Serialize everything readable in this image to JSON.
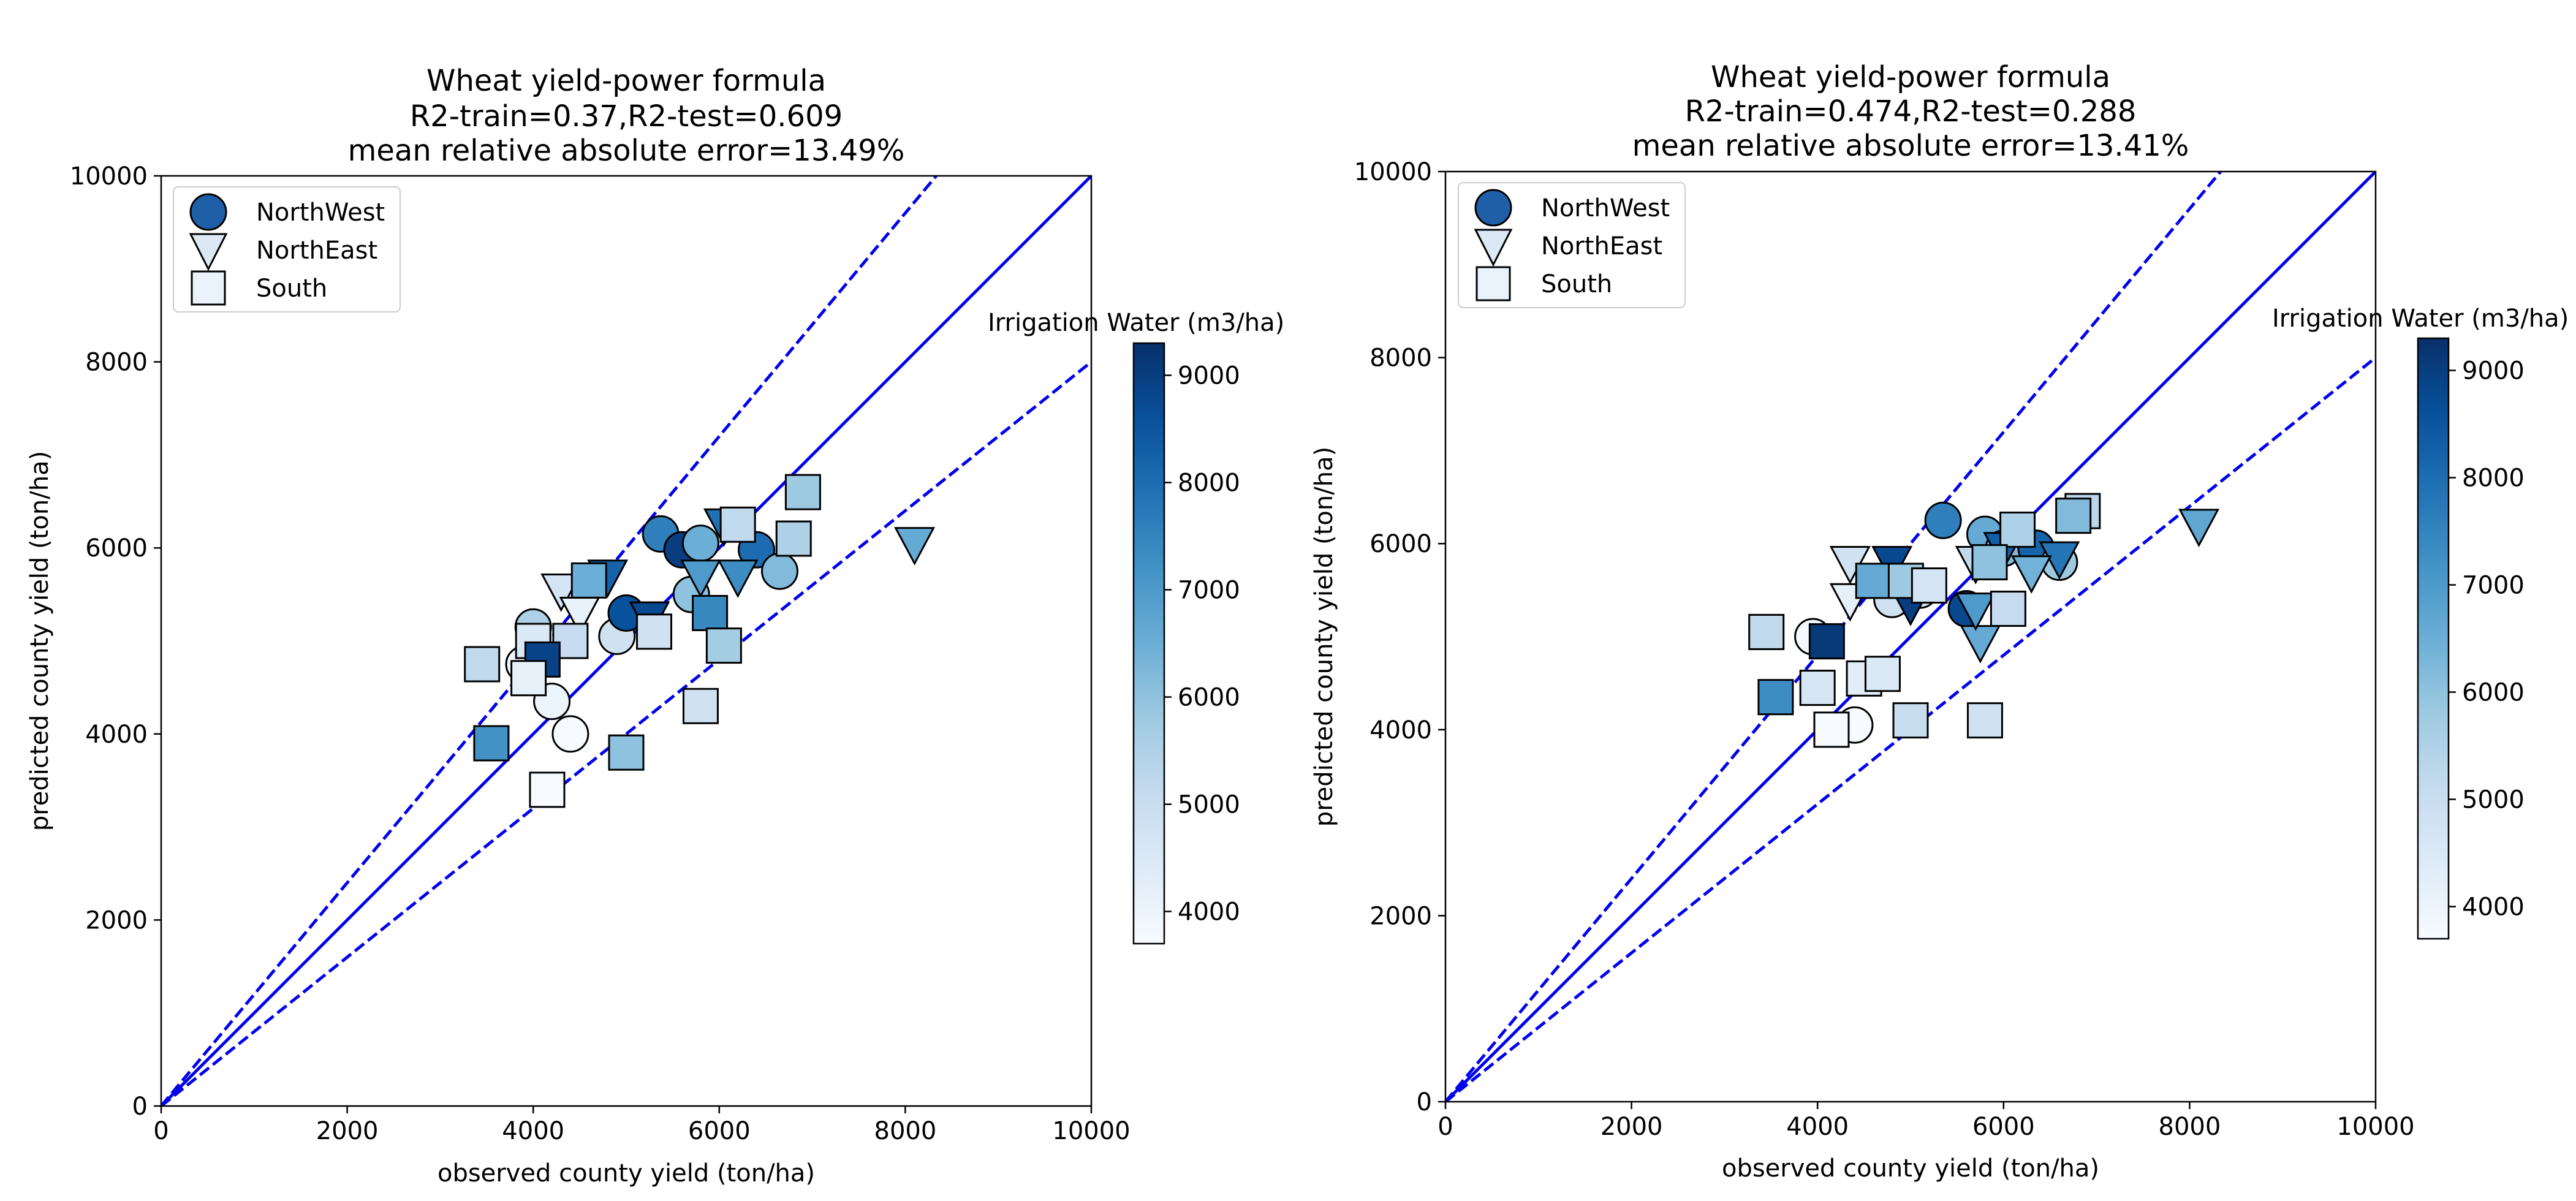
{
  "chart_data": [
    {
      "type": "scatter",
      "title_lines": [
        "Wheat yield-power formula",
        "R2-train=0.37,R2-test=0.609",
        "mean relative absolute error=13.49%"
      ],
      "xlabel": "observed county yield (ton/ha)",
      "ylabel": "predicted county yield (ton/ha)",
      "xlim": [
        0,
        10000
      ],
      "ylim": [
        0,
        10000
      ],
      "xticks": [
        "0",
        "2000",
        "4000",
        "6000",
        "8000",
        "10000"
      ],
      "yticks": [
        "0",
        "2000",
        "4000",
        "6000",
        "8000",
        "10000"
      ],
      "legend_position": "upper-left",
      "legend": [
        {
          "label": "NorthWest",
          "marker": "circle",
          "color": "#1f5fa8"
        },
        {
          "label": "NorthEast",
          "marker": "triangle-down",
          "color": "#dce9f5"
        },
        {
          "label": "South",
          "marker": "square",
          "color": "#eaf2fb"
        }
      ],
      "reference_lines": [
        {
          "style": "solid",
          "slope": 1.0
        },
        {
          "style": "dashed",
          "slope": 1.2
        },
        {
          "style": "dashed",
          "slope": 0.8
        }
      ],
      "colorbar": {
        "label": "Irrigation Water (m3/ha)",
        "min": 3700,
        "max": 9300,
        "ticks": [
          "4000",
          "5000",
          "6000",
          "7000",
          "8000",
          "9000"
        ]
      },
      "series": [
        {
          "name": "NorthWest",
          "marker": "circle",
          "points": [
            {
              "x": 5370,
              "y": 6150,
              "c": 7600
            },
            {
              "x": 5600,
              "y": 5980,
              "c": 9000
            },
            {
              "x": 5800,
              "y": 6050,
              "c": 6500
            },
            {
              "x": 4900,
              "y": 5050,
              "c": 4800
            },
            {
              "x": 5000,
              "y": 5300,
              "c": 8600
            },
            {
              "x": 5700,
              "y": 5500,
              "c": 6000
            },
            {
              "x": 6400,
              "y": 5980,
              "c": 8000
            },
            {
              "x": 6650,
              "y": 5750,
              "c": 6200
            },
            {
              "x": 4000,
              "y": 5150,
              "c": 5500
            },
            {
              "x": 3900,
              "y": 4750,
              "c": 3900
            },
            {
              "x": 4200,
              "y": 4350,
              "c": 4000
            },
            {
              "x": 4400,
              "y": 4000,
              "c": 3700
            }
          ]
        },
        {
          "name": "NorthEast",
          "marker": "triangle-down",
          "points": [
            {
              "x": 8100,
              "y": 6050,
              "c": 6600
            },
            {
              "x": 6200,
              "y": 5700,
              "c": 7300
            },
            {
              "x": 6050,
              "y": 6250,
              "c": 7900
            },
            {
              "x": 4300,
              "y": 5550,
              "c": 4700
            },
            {
              "x": 4500,
              "y": 5300,
              "c": 4100
            },
            {
              "x": 4800,
              "y": 5700,
              "c": 8200
            },
            {
              "x": 5250,
              "y": 5250,
              "c": 8800
            },
            {
              "x": 5800,
              "y": 5700,
              "c": 7000
            }
          ]
        },
        {
          "name": "South",
          "marker": "square",
          "points": [
            {
              "x": 6900,
              "y": 6600,
              "c": 5800
            },
            {
              "x": 6200,
              "y": 6250,
              "c": 5200
            },
            {
              "x": 6800,
              "y": 6100,
              "c": 5500
            },
            {
              "x": 4600,
              "y": 5650,
              "c": 6500
            },
            {
              "x": 4400,
              "y": 5000,
              "c": 5100
            },
            {
              "x": 4000,
              "y": 5000,
              "c": 4500
            },
            {
              "x": 3450,
              "y": 4750,
              "c": 5200
            },
            {
              "x": 4100,
              "y": 4800,
              "c": 8900
            },
            {
              "x": 3950,
              "y": 4600,
              "c": 4200
            },
            {
              "x": 5300,
              "y": 5100,
              "c": 4800
            },
            {
              "x": 5900,
              "y": 5300,
              "c": 7400
            },
            {
              "x": 6050,
              "y": 4950,
              "c": 5700
            },
            {
              "x": 3550,
              "y": 3900,
              "c": 7200
            },
            {
              "x": 5800,
              "y": 4300,
              "c": 4800
            },
            {
              "x": 5000,
              "y": 3800,
              "c": 6000
            },
            {
              "x": 4150,
              "y": 3400,
              "c": 3700
            }
          ]
        }
      ]
    },
    {
      "type": "scatter",
      "title_lines": [
        "Wheat yield-power formula",
        "R2-train=0.474,R2-test=0.288",
        "mean relative absolute error=13.41%"
      ],
      "xlabel": "observed county yield (ton/ha)",
      "ylabel": "predicted county yield (ton/ha)",
      "xlim": [
        0,
        10000
      ],
      "ylim": [
        0,
        10000
      ],
      "xticks": [
        "0",
        "2000",
        "4000",
        "6000",
        "8000",
        "10000"
      ],
      "yticks": [
        "0",
        "2000",
        "4000",
        "6000",
        "8000",
        "10000"
      ],
      "legend_position": "upper-left",
      "legend": [
        {
          "label": "NorthWest",
          "marker": "circle",
          "color": "#1f5fa8"
        },
        {
          "label": "NorthEast",
          "marker": "triangle-down",
          "color": "#dce9f5"
        },
        {
          "label": "South",
          "marker": "square",
          "color": "#eaf2fb"
        }
      ],
      "reference_lines": [
        {
          "style": "solid",
          "slope": 1.0
        },
        {
          "style": "dashed",
          "slope": 1.2
        },
        {
          "style": "dashed",
          "slope": 0.8
        }
      ],
      "colorbar": {
        "label": "Irrigation Water (m3/ha)",
        "min": 3700,
        "max": 9300,
        "ticks": [
          "4000",
          "5000",
          "6000",
          "7000",
          "8000",
          "9000"
        ]
      },
      "series": [
        {
          "name": "NorthWest",
          "marker": "circle",
          "points": [
            {
              "x": 5350,
              "y": 6250,
              "c": 7600
            },
            {
              "x": 5800,
              "y": 6100,
              "c": 6600
            },
            {
              "x": 6000,
              "y": 5950,
              "c": 6200
            },
            {
              "x": 6350,
              "y": 5950,
              "c": 8200
            },
            {
              "x": 6600,
              "y": 5800,
              "c": 5800
            },
            {
              "x": 5600,
              "y": 5300,
              "c": 8800
            },
            {
              "x": 4800,
              "y": 5400,
              "c": 4800
            },
            {
              "x": 5100,
              "y": 5500,
              "c": 4500
            },
            {
              "x": 3950,
              "y": 5000,
              "c": 3800
            },
            {
              "x": 4400,
              "y": 4050,
              "c": 3700
            }
          ]
        },
        {
          "name": "NorthEast",
          "marker": "triangle-down",
          "points": [
            {
              "x": 8100,
              "y": 6200,
              "c": 6700
            },
            {
              "x": 4350,
              "y": 5800,
              "c": 4800
            },
            {
              "x": 4800,
              "y": 5800,
              "c": 8800
            },
            {
              "x": 5000,
              "y": 5350,
              "c": 9000
            },
            {
              "x": 4350,
              "y": 5400,
              "c": 4200
            },
            {
              "x": 5700,
              "y": 5800,
              "c": 5200
            },
            {
              "x": 6000,
              "y": 5950,
              "c": 8300
            },
            {
              "x": 6600,
              "y": 5850,
              "c": 7800
            },
            {
              "x": 5750,
              "y": 4950,
              "c": 6600
            },
            {
              "x": 5700,
              "y": 5300,
              "c": 7000
            },
            {
              "x": 6300,
              "y": 5700,
              "c": 6400
            }
          ]
        },
        {
          "name": "South",
          "marker": "square",
          "points": [
            {
              "x": 6150,
              "y": 6150,
              "c": 5500
            },
            {
              "x": 6850,
              "y": 6350,
              "c": 5300
            },
            {
              "x": 6750,
              "y": 6300,
              "c": 6200
            },
            {
              "x": 5850,
              "y": 5800,
              "c": 6000
            },
            {
              "x": 4600,
              "y": 5600,
              "c": 6600
            },
            {
              "x": 4950,
              "y": 5600,
              "c": 5800
            },
            {
              "x": 5200,
              "y": 5550,
              "c": 4700
            },
            {
              "x": 3450,
              "y": 5050,
              "c": 5200
            },
            {
              "x": 4100,
              "y": 4950,
              "c": 9100
            },
            {
              "x": 6050,
              "y": 5300,
              "c": 5100
            },
            {
              "x": 3550,
              "y": 4350,
              "c": 7300
            },
            {
              "x": 4000,
              "y": 4450,
              "c": 4600
            },
            {
              "x": 4500,
              "y": 4550,
              "c": 4300
            },
            {
              "x": 4700,
              "y": 4600,
              "c": 4500
            },
            {
              "x": 5000,
              "y": 4100,
              "c": 5000
            },
            {
              "x": 5800,
              "y": 4100,
              "c": 4800
            },
            {
              "x": 4150,
              "y": 4000,
              "c": 3700
            }
          ]
        }
      ]
    }
  ]
}
